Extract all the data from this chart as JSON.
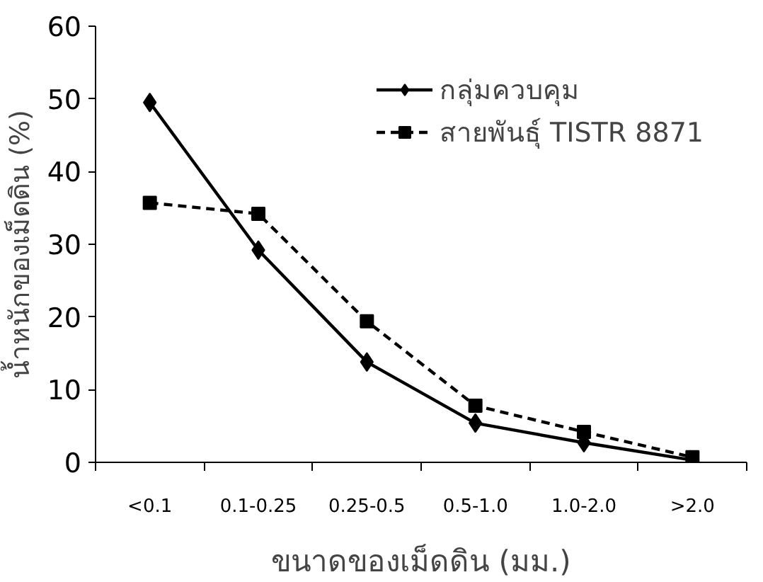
{
  "chart_data": {
    "type": "line",
    "xlabel": "ขนาดของเม็ดดิน (มม.)",
    "ylabel": "น้ำหนักของเม็ดดิน (%)",
    "categories": [
      "<0.1",
      "0.1-0.25",
      "0.25-0.5",
      "0.5-1.0",
      "1.0-2.0",
      ">2.0"
    ],
    "series": [
      {
        "name": "กลุ่มควบคุม",
        "color": "#000000",
        "marker": "diamond",
        "line_style": "solid",
        "values": [
          49.5,
          29.2,
          13.8,
          5.4,
          2.7,
          0.3
        ]
      },
      {
        "name": "สายพันธุ์ TISTR 8871",
        "color": "#000000",
        "marker": "square",
        "line_style": "dashed",
        "values": [
          35.7,
          34.2,
          19.4,
          7.8,
          4.2,
          0.7
        ]
      }
    ],
    "ylim": [
      0,
      60
    ],
    "yticks": [
      0,
      10,
      20,
      30,
      40,
      50,
      60
    ],
    "grid": false,
    "legend": "top right"
  }
}
